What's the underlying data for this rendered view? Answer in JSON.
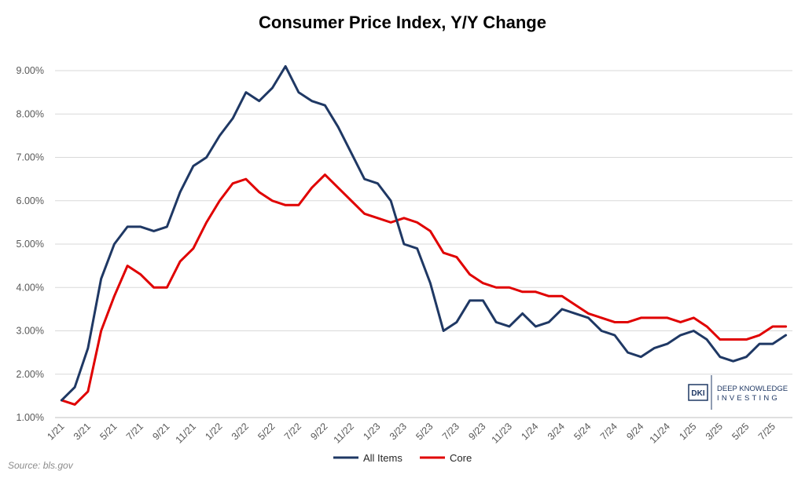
{
  "chart_data": {
    "type": "line",
    "title": "Consumer Price Index, Y/Y Change",
    "xlabel": "",
    "ylabel": "",
    "ylim": [
      1.0,
      9.0
    ],
    "yticks": [
      "1.00%",
      "2.00%",
      "3.00%",
      "4.00%",
      "5.00%",
      "6.00%",
      "7.00%",
      "8.00%",
      "9.00%"
    ],
    "ytick_values": [
      1,
      2,
      3,
      4,
      5,
      6,
      7,
      8,
      9
    ],
    "grid": true,
    "legend_position": "bottom",
    "x_tick_labels": [
      "1/21",
      "3/21",
      "5/21",
      "7/21",
      "9/21",
      "11/21",
      "1/22",
      "3/22",
      "5/22",
      "7/22",
      "9/22",
      "11/22",
      "1/23",
      "3/23",
      "5/23",
      "7/23",
      "9/23",
      "11/23",
      "1/24",
      "3/24",
      "5/24",
      "7/24",
      "9/24",
      "11/24",
      "1/25",
      "3/25",
      "5/25",
      "7/25"
    ],
    "series": [
      {
        "name": "All Items",
        "color": "#1f3864",
        "values": [
          1.4,
          1.7,
          2.6,
          4.2,
          5.0,
          5.4,
          5.4,
          5.3,
          5.4,
          6.2,
          6.8,
          7.0,
          7.5,
          7.9,
          8.5,
          8.3,
          8.6,
          9.1,
          8.5,
          8.3,
          8.2,
          7.7,
          7.1,
          6.5,
          6.4,
          6.0,
          5.0,
          4.9,
          4.1,
          3.0,
          3.2,
          3.7,
          3.7,
          3.2,
          3.1,
          3.4,
          3.1,
          3.2,
          3.5,
          3.4,
          3.3,
          3.0,
          2.9,
          2.5,
          2.4,
          2.6,
          2.7,
          2.9,
          3.0,
          2.8,
          2.4,
          2.3,
          2.4,
          2.7,
          2.7,
          2.9
        ]
      },
      {
        "name": "Core",
        "color": "#e00000",
        "values": [
          1.4,
          1.3,
          1.6,
          3.0,
          3.8,
          4.5,
          4.3,
          4.0,
          4.0,
          4.6,
          4.9,
          5.5,
          6.0,
          6.4,
          6.5,
          6.2,
          6.0,
          5.9,
          5.9,
          6.3,
          6.6,
          6.3,
          6.0,
          5.7,
          5.6,
          5.5,
          5.6,
          5.5,
          5.3,
          4.8,
          4.7,
          4.3,
          4.1,
          4.0,
          4.0,
          3.9,
          3.9,
          3.8,
          3.8,
          3.6,
          3.4,
          3.3,
          3.2,
          3.2,
          3.3,
          3.3,
          3.3,
          3.2,
          3.3,
          3.1,
          2.8,
          2.8,
          2.8,
          2.9,
          3.1,
          3.1
        ]
      }
    ]
  },
  "source": "Source: bls.gov",
  "logo": {
    "mark": "DKI",
    "line1": "DEEP KNOWLEDGE",
    "line2": "INVESTING"
  }
}
